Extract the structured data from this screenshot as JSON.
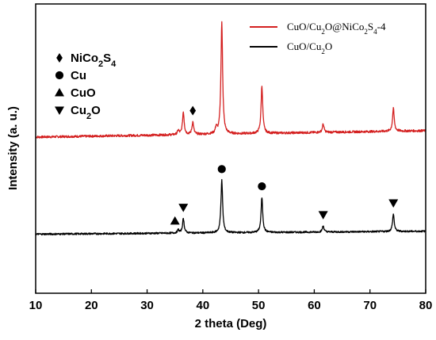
{
  "chart_data": {
    "type": "line",
    "title": "",
    "xlabel": "2 theta (Deg)",
    "ylabel": "Intensity (a. u.)",
    "xlim": [
      10,
      80
    ],
    "xticks": [
      10,
      20,
      30,
      40,
      50,
      60,
      70,
      80
    ],
    "y_ticks_shown": false,
    "grid": false,
    "legend_position": "top-right",
    "series": [
      {
        "name": "CuO/Cu2O@NiCo2S4-4",
        "name_parts": [
          [
            "CuO/Cu",
            ""
          ],
          [
            "2",
            "sub"
          ],
          [
            "O@NiCo",
            ""
          ],
          [
            "2",
            "sub"
          ],
          [
            "S",
            ""
          ],
          [
            "4",
            "sub"
          ],
          [
            "-4",
            ""
          ]
        ],
        "color": "#d42020",
        "baseline_start": 0.54,
        "baseline_end": 0.85,
        "noise": 0.018,
        "peaks": [
          [
            35.6,
            0.2
          ],
          [
            36.5,
            1.1
          ],
          [
            38.2,
            0.6
          ],
          [
            42.4,
            0.3
          ],
          [
            43.4,
            5.4
          ],
          [
            50.6,
            2.3
          ],
          [
            61.6,
            0.4
          ],
          [
            74.2,
            1.1
          ]
        ]
      },
      {
        "name": "CuO/Cu2O",
        "name_parts": [
          [
            "CuO/Cu",
            ""
          ],
          [
            "2",
            "sub"
          ],
          [
            "O",
            ""
          ]
        ],
        "color": "#000000",
        "baseline_start": 0.06,
        "baseline_end": 0.2,
        "noise": 0.014,
        "peaks": [
          [
            35.6,
            0.15
          ],
          [
            36.5,
            0.7
          ],
          [
            43.4,
            2.55
          ],
          [
            50.6,
            1.7
          ],
          [
            61.6,
            0.3
          ],
          [
            74.2,
            0.85
          ]
        ]
      }
    ],
    "phase_legend": [
      {
        "symbol": "diamond",
        "parts": [
          [
            "NiCo",
            ""
          ],
          [
            "2",
            "sub"
          ],
          [
            "S",
            ""
          ],
          [
            "4",
            "sub"
          ]
        ]
      },
      {
        "symbol": "circle",
        "parts": [
          [
            "Cu",
            ""
          ]
        ]
      },
      {
        "symbol": "triangle-up",
        "parts": [
          [
            "CuO",
            ""
          ]
        ]
      },
      {
        "symbol": "triangle-down",
        "parts": [
          [
            "Cu",
            ""
          ],
          [
            "2",
            "sub"
          ],
          [
            "O",
            ""
          ]
        ]
      }
    ],
    "markers": [
      {
        "symbol": "diamond",
        "x": 38.2,
        "series": 0
      },
      {
        "symbol": "circle",
        "x": 43.4,
        "series": 1
      },
      {
        "symbol": "circle",
        "x": 50.6,
        "series": 1
      },
      {
        "symbol": "triangle-up",
        "x": 35.0,
        "series": 1
      },
      {
        "symbol": "triangle-down",
        "x": 36.5,
        "series": 1
      },
      {
        "symbol": "triangle-down",
        "x": 61.6,
        "series": 1
      },
      {
        "symbol": "triangle-down",
        "x": 74.2,
        "series": 1
      }
    ]
  }
}
